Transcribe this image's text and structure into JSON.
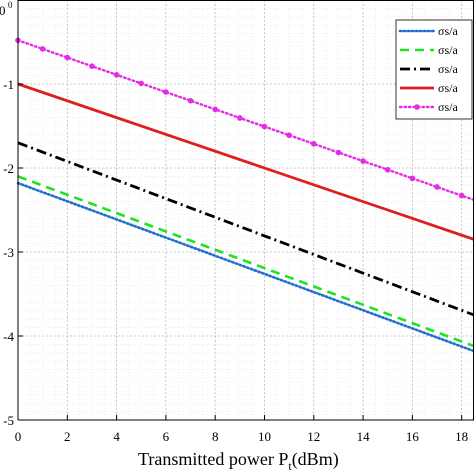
{
  "chart_data": {
    "type": "line",
    "title": "",
    "xlabel": "Transmitted power P",
    "xlabel_sub": "t",
    "xlabel_unit": "(dBm)",
    "ylabel": "",
    "y_top_tick_label": "0",
    "y_top_tick_exponent": "0",
    "xlim": [
      0,
      18.5
    ],
    "ylim": [
      -5,
      0
    ],
    "x_ticks": [
      0,
      2,
      4,
      6,
      8,
      10,
      12,
      14,
      16,
      18
    ],
    "y_ticks": [
      -1,
      -2,
      -3,
      -4,
      -5
    ],
    "grid": true,
    "legend_position": "top-right",
    "series": [
      {
        "name": "σs/a",
        "color": "#1f6fd0",
        "style": "dotted",
        "x": [
          0,
          18.5
        ],
        "y": [
          -2.18,
          -4.18
        ]
      },
      {
        "name": "σs/a",
        "color": "#1ee31e",
        "style": "dashed",
        "x": [
          0,
          18.5
        ],
        "y": [
          -2.1,
          -4.12
        ]
      },
      {
        "name": "σs/a",
        "color": "#000000",
        "style": "dashdot",
        "x": [
          0,
          18.5
        ],
        "y": [
          -1.7,
          -3.75
        ]
      },
      {
        "name": "σs/a",
        "color": "#dd1f1f",
        "style": "solid",
        "x": [
          0,
          18.5
        ],
        "y": [
          -1.0,
          -2.85
        ]
      },
      {
        "name": "σs/a",
        "color": "#e62be6",
        "style": "dotted-marker",
        "x": [
          0,
          18.5
        ],
        "y": [
          -0.48,
          -2.38
        ]
      }
    ]
  }
}
